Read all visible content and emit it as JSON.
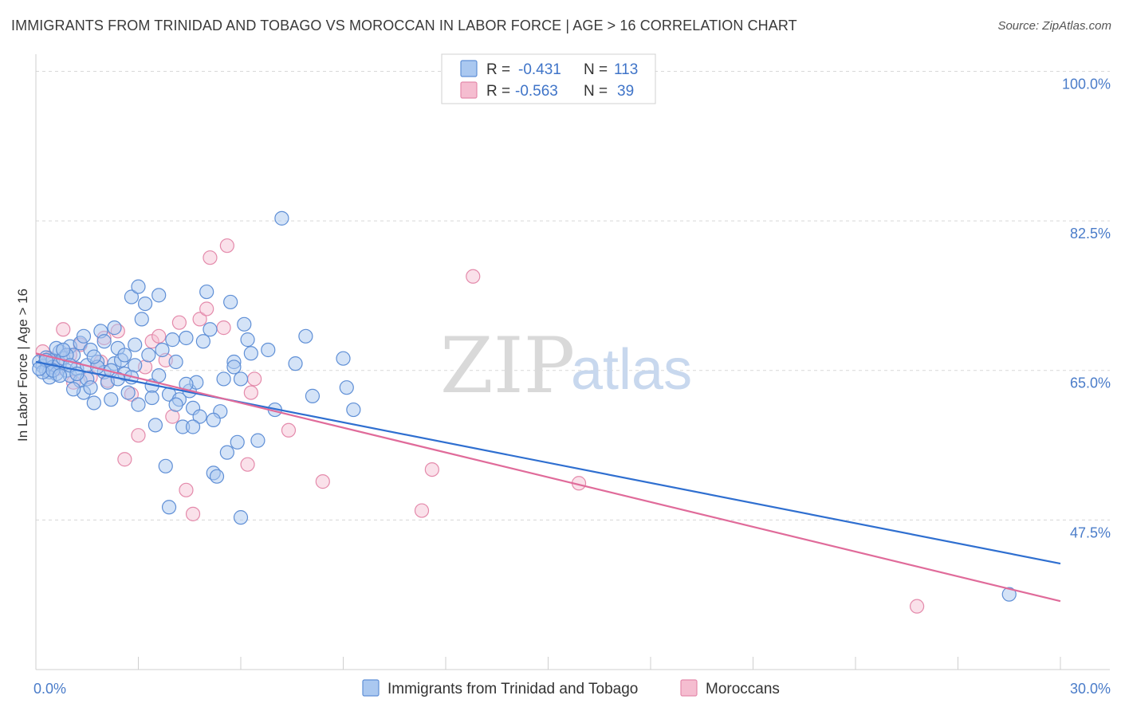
{
  "header": {
    "title": "IMMIGRANTS FROM TRINIDAD AND TOBAGO VS MOROCCAN IN LABOR FORCE | AGE > 16 CORRELATION CHART",
    "source": "Source: ZipAtlas.com"
  },
  "watermark": {
    "zip": "ZIP",
    "atlas": "atlas"
  },
  "colors": {
    "blue_fill": "#aac8f0",
    "blue_stroke": "#5f8fd6",
    "blue_line": "#2f6fd0",
    "pink_fill": "#f5bdd0",
    "pink_stroke": "#e48aab",
    "pink_line": "#e06b9a",
    "tick_text": "#4a7cc9",
    "grid": "#d8d8d8"
  },
  "legend": {
    "rows": [
      {
        "r_label": "R = ",
        "r_value": "-0.431",
        "n_label": "N = ",
        "n_value": "113"
      },
      {
        "r_label": "R = ",
        "r_value": "-0.563",
        "n_label": "N = ",
        "n_value": "39"
      }
    ]
  },
  "chart_data": {
    "type": "scatter",
    "title": "IMMIGRANTS FROM TRINIDAD AND TOBAGO VS MOROCCAN IN LABOR FORCE | AGE > 16 CORRELATION CHART",
    "xlabel": "",
    "ylabel": "In Labor Force | Age > 16",
    "xlim": [
      0,
      30
    ],
    "ylim": [
      30,
      102
    ],
    "x_tick_labels": [
      "0.0%",
      "30.0%"
    ],
    "y_ticks": [
      47.5,
      65.0,
      82.5,
      100.0
    ],
    "y_tick_labels": [
      "47.5%",
      "65.0%",
      "82.5%",
      "100.0%"
    ],
    "grid": true,
    "legend_placement": "top-center",
    "series": [
      {
        "name": "Immigrants from Trinidad and Tobago",
        "color": "#aac8f0",
        "trend": {
          "x": [
            0,
            30
          ],
          "y": [
            66.0,
            42.4
          ]
        },
        "points": [
          [
            0.1,
            66.0
          ],
          [
            0.2,
            65.5
          ],
          [
            0.3,
            66.5
          ],
          [
            0.3,
            65.0
          ],
          [
            0.4,
            64.8
          ],
          [
            0.5,
            66.2
          ],
          [
            0.5,
            65.4
          ],
          [
            0.6,
            64.6
          ],
          [
            0.7,
            67.2
          ],
          [
            0.7,
            65.8
          ],
          [
            0.8,
            66.4
          ],
          [
            0.9,
            65.0
          ],
          [
            1.0,
            67.8
          ],
          [
            1.0,
            64.4
          ],
          [
            1.1,
            66.8
          ],
          [
            1.2,
            65.2
          ],
          [
            1.3,
            68.2
          ],
          [
            1.3,
            63.8
          ],
          [
            1.4,
            62.4
          ],
          [
            1.5,
            65.6
          ],
          [
            1.6,
            67.4
          ],
          [
            1.7,
            61.2
          ],
          [
            1.8,
            66.0
          ],
          [
            1.9,
            69.6
          ],
          [
            2.0,
            64.8
          ],
          [
            2.1,
            63.6
          ],
          [
            2.2,
            61.6
          ],
          [
            2.3,
            65.8
          ],
          [
            2.4,
            67.6
          ],
          [
            2.5,
            66.2
          ],
          [
            2.6,
            64.6
          ],
          [
            2.7,
            62.4
          ],
          [
            2.8,
            73.6
          ],
          [
            2.9,
            68.0
          ],
          [
            3.0,
            74.8
          ],
          [
            3.1,
            71.0
          ],
          [
            3.2,
            72.8
          ],
          [
            3.3,
            66.8
          ],
          [
            3.4,
            63.2
          ],
          [
            3.5,
            58.6
          ],
          [
            3.6,
            73.8
          ],
          [
            3.7,
            67.4
          ],
          [
            3.8,
            53.8
          ],
          [
            3.9,
            62.2
          ],
          [
            4.0,
            68.6
          ],
          [
            4.1,
            66.0
          ],
          [
            4.2,
            61.6
          ],
          [
            4.3,
            58.4
          ],
          [
            4.4,
            68.8
          ],
          [
            4.5,
            62.6
          ],
          [
            4.6,
            60.6
          ],
          [
            4.7,
            63.6
          ],
          [
            4.8,
            59.6
          ],
          [
            4.9,
            68.4
          ],
          [
            5.0,
            74.2
          ],
          [
            5.1,
            69.8
          ],
          [
            5.2,
            53.0
          ],
          [
            5.3,
            52.6
          ],
          [
            5.4,
            60.2
          ],
          [
            5.5,
            64.0
          ],
          [
            5.6,
            55.4
          ],
          [
            5.7,
            73.0
          ],
          [
            5.8,
            66.0
          ],
          [
            5.9,
            56.6
          ],
          [
            6.0,
            47.8
          ],
          [
            6.1,
            70.4
          ],
          [
            6.2,
            68.6
          ],
          [
            6.3,
            67.0
          ],
          [
            6.5,
            56.8
          ],
          [
            6.8,
            67.4
          ],
          [
            7.2,
            82.8
          ],
          [
            7.6,
            65.8
          ],
          [
            7.9,
            69.0
          ],
          [
            8.1,
            62.0
          ],
          [
            9.0,
            66.4
          ],
          [
            9.1,
            63.0
          ],
          [
            9.3,
            60.4
          ],
          [
            2.9,
            65.6
          ],
          [
            1.5,
            64.0
          ],
          [
            0.4,
            64.2
          ],
          [
            2.3,
            70.0
          ],
          [
            0.6,
            67.6
          ],
          [
            1.8,
            65.4
          ],
          [
            3.4,
            61.8
          ],
          [
            4.6,
            58.4
          ],
          [
            0.9,
            66.8
          ],
          [
            2.6,
            66.8
          ],
          [
            1.1,
            62.8
          ],
          [
            3.9,
            49.0
          ],
          [
            5.2,
            59.2
          ],
          [
            7.0,
            60.4
          ],
          [
            4.4,
            63.4
          ],
          [
            0.2,
            64.8
          ],
          [
            1.4,
            69.0
          ],
          [
            2.0,
            68.4
          ],
          [
            6.0,
            64.0
          ],
          [
            3.6,
            64.4
          ],
          [
            1.0,
            65.6
          ],
          [
            0.8,
            67.4
          ],
          [
            0.5,
            65.0
          ],
          [
            28.5,
            38.8
          ],
          [
            0.3,
            66.2
          ],
          [
            1.7,
            66.6
          ],
          [
            2.8,
            64.2
          ],
          [
            4.1,
            61.0
          ],
          [
            5.8,
            65.4
          ],
          [
            0.1,
            65.2
          ],
          [
            2.2,
            65.0
          ],
          [
            1.2,
            64.6
          ],
          [
            3.0,
            61.0
          ],
          [
            0.7,
            64.4
          ],
          [
            1.6,
            63.0
          ],
          [
            2.4,
            64.0
          ]
        ]
      },
      {
        "name": "Moroccans",
        "color": "#f5bdd0",
        "trend": {
          "x": [
            0,
            30
          ],
          "y": [
            67.0,
            38.0
          ]
        },
        "points": [
          [
            0.2,
            67.2
          ],
          [
            0.4,
            66.4
          ],
          [
            0.6,
            65.2
          ],
          [
            0.8,
            69.8
          ],
          [
            1.0,
            66.8
          ],
          [
            1.3,
            68.0
          ],
          [
            1.6,
            64.2
          ],
          [
            1.9,
            66.0
          ],
          [
            2.1,
            63.8
          ],
          [
            2.4,
            69.6
          ],
          [
            2.6,
            54.6
          ],
          [
            2.8,
            62.2
          ],
          [
            3.0,
            57.4
          ],
          [
            3.2,
            65.4
          ],
          [
            3.4,
            68.4
          ],
          [
            3.6,
            69.0
          ],
          [
            3.8,
            66.2
          ],
          [
            4.0,
            59.6
          ],
          [
            4.2,
            70.6
          ],
          [
            4.4,
            51.0
          ],
          [
            4.6,
            48.2
          ],
          [
            4.8,
            71.0
          ],
          [
            5.0,
            72.2
          ],
          [
            5.1,
            78.2
          ],
          [
            5.5,
            70.0
          ],
          [
            5.6,
            79.6
          ],
          [
            6.2,
            54.0
          ],
          [
            6.3,
            62.4
          ],
          [
            6.4,
            64.0
          ],
          [
            7.4,
            58.0
          ],
          [
            8.4,
            52.0
          ],
          [
            11.3,
            48.6
          ],
          [
            11.6,
            53.4
          ],
          [
            12.8,
            76.0
          ],
          [
            15.9,
            51.8
          ],
          [
            25.8,
            37.4
          ],
          [
            1.1,
            63.6
          ],
          [
            0.5,
            65.8
          ],
          [
            2.0,
            68.8
          ]
        ]
      }
    ]
  },
  "bottom_legend": {
    "items": [
      {
        "label": "Immigrants from Trinidad and Tobago"
      },
      {
        "label": "Moroccans"
      }
    ]
  }
}
